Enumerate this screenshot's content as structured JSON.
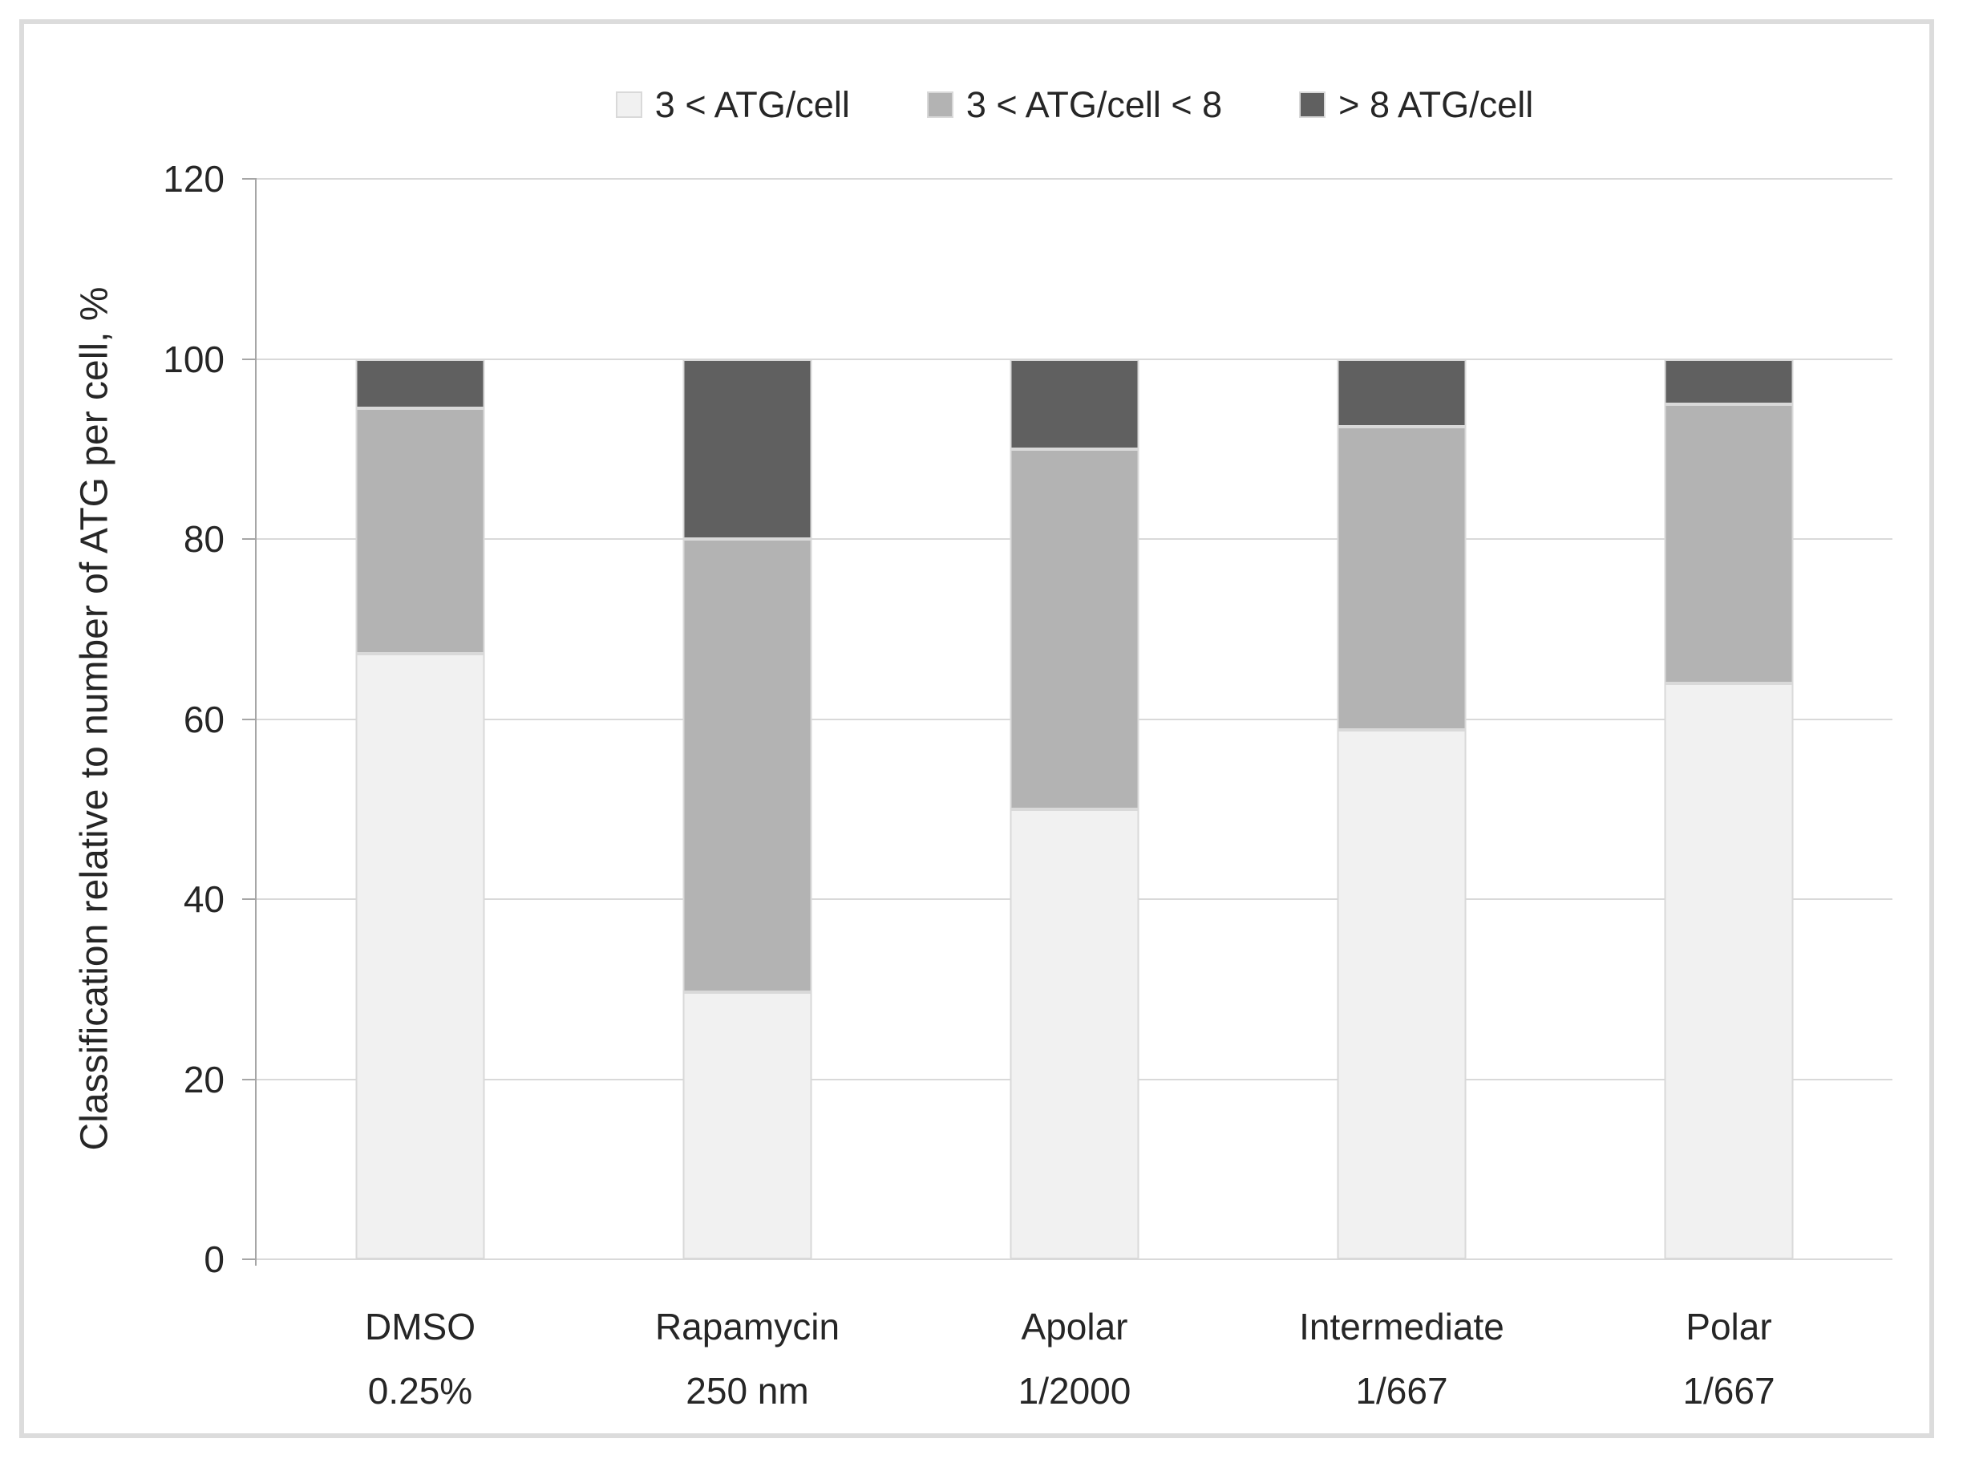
{
  "chart_data": {
    "type": "bar",
    "stacked": true,
    "title": "",
    "xlabel": "",
    "ylabel": "Classification relative to number of ATG per cell, %",
    "ylim": [
      0,
      120
    ],
    "yticks": [
      0,
      20,
      40,
      60,
      80,
      100,
      120
    ],
    "grid": "horizontal",
    "legend_position": "top-center",
    "bar_total": 100,
    "categories": [
      {
        "line1": "DMSO",
        "line2": "0.25%"
      },
      {
        "line1": "Rapamycin",
        "line2": "250 nm"
      },
      {
        "line1": "Apolar",
        "line2": "1/2000"
      },
      {
        "line1": "Intermediate",
        "line2": "1/667"
      },
      {
        "line1": "Polar",
        "line2": "1/667"
      }
    ],
    "series": [
      {
        "name": "3 < ATG/cell",
        "color": "#f1f1f1",
        "values": [
          67.3,
          29.7,
          50.0,
          58.8,
          64.0
        ]
      },
      {
        "name": "3 < ATG/cell < 8",
        "color": "#b3b3b3",
        "values": [
          27.2,
          50.3,
          40.0,
          33.7,
          31.0
        ]
      },
      {
        "name": "> 8 ATG/cell",
        "color": "#606060",
        "values": [
          5.5,
          20.0,
          10.0,
          7.5,
          5.0
        ]
      }
    ]
  },
  "colors": {
    "frame_border": "#dcdcdc",
    "gridline": "#d9d9d9",
    "axis_line": "#a6a6a6",
    "segment_border": "#d9d9d9",
    "text": "#262626",
    "background": "#ffffff"
  }
}
